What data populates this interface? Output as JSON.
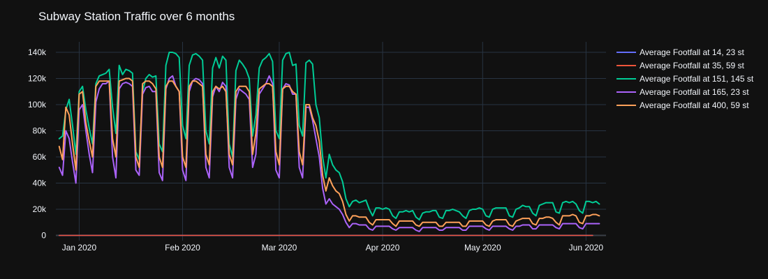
{
  "chart_data": {
    "type": "line",
    "title": "Subway Station Traffic over 6 months",
    "x_start": "2019-12-26",
    "x_end": "2020-06-04",
    "xlim": [
      "2019-12-25",
      "2020-06-07"
    ],
    "ylim": [
      -4000,
      148000
    ],
    "x_ticks": [
      {
        "date": "2020-01-01",
        "label": "Jan 2020"
      },
      {
        "date": "2020-02-01",
        "label": "Feb 2020"
      },
      {
        "date": "2020-03-01",
        "label": "Mar 2020"
      },
      {
        "date": "2020-04-01",
        "label": "Apr 2020"
      },
      {
        "date": "2020-05-01",
        "label": "May 2020"
      },
      {
        "date": "2020-06-01",
        "label": "Jun 2020"
      }
    ],
    "y_ticks": [
      {
        "value": 0,
        "label": "0"
      },
      {
        "value": 20000,
        "label": "20k"
      },
      {
        "value": 40000,
        "label": "40k"
      },
      {
        "value": 60000,
        "label": "60k"
      },
      {
        "value": 80000,
        "label": "80k"
      },
      {
        "value": 100000,
        "label": "100k"
      },
      {
        "value": 120000,
        "label": "120k"
      },
      {
        "value": 140000,
        "label": "140k"
      }
    ],
    "grid": true,
    "legend_position": "right",
    "series": [
      {
        "name": "Average Footfall at 14, 23 st",
        "color": "#636efa",
        "values": [
          0,
          0,
          0,
          0,
          0,
          0,
          0,
          0,
          0,
          0,
          0,
          0,
          0,
          0,
          0,
          0,
          0,
          0,
          0,
          0,
          0,
          0,
          0,
          0,
          0,
          0,
          0,
          0,
          0,
          0,
          0,
          0,
          0,
          0,
          0,
          0,
          0,
          0,
          0,
          0,
          0,
          0,
          0,
          0,
          0,
          0,
          0,
          0,
          0,
          0,
          0,
          0,
          0,
          0,
          0,
          0,
          0,
          0,
          0,
          0,
          0,
          0,
          0,
          0,
          0,
          0,
          0,
          0,
          0,
          0,
          0,
          0,
          0,
          0,
          0,
          0,
          0,
          0,
          0,
          0,
          0,
          0,
          0,
          0,
          0,
          0,
          0,
          0,
          0,
          0,
          0,
          0,
          0,
          0,
          0,
          0,
          0,
          0,
          0,
          0,
          0,
          0,
          0,
          0,
          0,
          0,
          0,
          0,
          0,
          0,
          0,
          0,
          0,
          0,
          0,
          0,
          0,
          0,
          0,
          0,
          0,
          0,
          0,
          0,
          0,
          0,
          0,
          0,
          0,
          0,
          0,
          0,
          0,
          0,
          0,
          0,
          0,
          0,
          0,
          0,
          0,
          0,
          0,
          0,
          0,
          0,
          0,
          0,
          0,
          0,
          0,
          0,
          0,
          0,
          0,
          0,
          0,
          0,
          0,
          0,
          0
        ]
      },
      {
        "name": "Average Footfall at 35, 59 st",
        "color": "#EF553B",
        "values": [
          0,
          0,
          0,
          0,
          0,
          0,
          0,
          0,
          0,
          0,
          0,
          0,
          0,
          0,
          0,
          0,
          0,
          0,
          0,
          0,
          0,
          0,
          0,
          0,
          0,
          0,
          0,
          0,
          0,
          0,
          0,
          0,
          0,
          0,
          0,
          0,
          0,
          0,
          0,
          0,
          0,
          0,
          0,
          0,
          0,
          0,
          0,
          0,
          0,
          0,
          0,
          0,
          0,
          0,
          0,
          0,
          0,
          0,
          0,
          0,
          0,
          0,
          0,
          0,
          0,
          0,
          0,
          0,
          0,
          0,
          0,
          0,
          0,
          0,
          0,
          0,
          0,
          0,
          0,
          0,
          0,
          0,
          0,
          0,
          0,
          0,
          0,
          0,
          0,
          0,
          0,
          0,
          0,
          0,
          0,
          0,
          0,
          0,
          0,
          0,
          0,
          0,
          0,
          0,
          0,
          0,
          0,
          0,
          0,
          0,
          0,
          0,
          0,
          0,
          0,
          0,
          0,
          0,
          0,
          0,
          0,
          0,
          0,
          0,
          0,
          0,
          0,
          0,
          0,
          0,
          0,
          0,
          0,
          0,
          0,
          0,
          0,
          0,
          0,
          0,
          0,
          0,
          0,
          0,
          0,
          0,
          0,
          0,
          0,
          0,
          0,
          0,
          0,
          0,
          0,
          0,
          0,
          0,
          0,
          0,
          0
        ]
      },
      {
        "name": "Average Footfall at 151, 145 st",
        "color": "#00cc96",
        "values": [
          74000,
          76000,
          96000,
          104000,
          84000,
          62000,
          110000,
          114000,
          96000,
          82000,
          70000,
          116000,
          122000,
          123000,
          124000,
          127000,
          98000,
          78000,
          130000,
          123000,
          127000,
          126000,
          124000,
          64000,
          58000,
          110000,
          120000,
          123000,
          121000,
          122000,
          70000,
          64000,
          130000,
          140000,
          140000,
          139000,
          136000,
          84000,
          74000,
          130000,
          138000,
          139000,
          137000,
          134000,
          80000,
          70000,
          128000,
          136000,
          128000,
          137000,
          134000,
          70000,
          60000,
          126000,
          134000,
          131000,
          127000,
          120000,
          76000,
          92000,
          128000,
          134000,
          136000,
          139000,
          133000,
          80000,
          74000,
          134000,
          139000,
          140000,
          130000,
          131000,
          84000,
          76000,
          132000,
          134000,
          131000,
          100000,
          90000,
          60000,
          44000,
          62000,
          54000,
          50000,
          48000,
          41000,
          28000,
          22000,
          26000,
          27000,
          25000,
          26000,
          27000,
          20000,
          15000,
          21000,
          21000,
          20000,
          21000,
          20000,
          15000,
          13000,
          18000,
          18000,
          19000,
          18000,
          19000,
          14000,
          12000,
          17000,
          18000,
          18000,
          19000,
          19000,
          14000,
          13000,
          19000,
          19000,
          20000,
          19000,
          18000,
          15000,
          13000,
          19000,
          20000,
          20000,
          21000,
          20000,
          15000,
          14000,
          20000,
          21000,
          21000,
          21000,
          21000,
          15000,
          14000,
          20000,
          21000,
          23000,
          22000,
          22000,
          17000,
          15000,
          23000,
          24000,
          25000,
          25000,
          25000,
          18000,
          17000,
          25000,
          26000,
          25000,
          26000,
          24000,
          19000,
          17000,
          26000,
          26000,
          25000,
          26000,
          24000
        ]
      },
      {
        "name": "Average Footfall at 165, 23 st",
        "color": "#ab63fa",
        "values": [
          52000,
          46000,
          80000,
          74000,
          56000,
          40000,
          96000,
          100000,
          80000,
          62000,
          48000,
          102000,
          112000,
          116000,
          116000,
          118000,
          60000,
          44000,
          112000,
          116000,
          117000,
          116000,
          114000,
          50000,
          46000,
          108000,
          113000,
          114000,
          110000,
          110000,
          48000,
          42000,
          112000,
          120000,
          122000,
          114000,
          110000,
          50000,
          42000,
          110000,
          118000,
          120000,
          119000,
          116000,
          52000,
          44000,
          106000,
          114000,
          110000,
          117000,
          114000,
          52000,
          44000,
          104000,
          112000,
          110000,
          108000,
          104000,
          52000,
          62000,
          108000,
          112000,
          116000,
          122000,
          116000,
          50000,
          44000,
          112000,
          116000,
          115000,
          108000,
          108000,
          52000,
          44000,
          98000,
          98000,
          88000,
          74000,
          60000,
          36000,
          24000,
          28000,
          24000,
          22000,
          20000,
          16000,
          10000,
          6000,
          9000,
          9000,
          8000,
          8000,
          8000,
          5000,
          4000,
          7000,
          7000,
          7000,
          7000,
          7000,
          5000,
          4000,
          6000,
          6000,
          6000,
          6000,
          6000,
          4000,
          3000,
          6000,
          6000,
          6000,
          6000,
          6000,
          4000,
          4000,
          6000,
          6000,
          6000,
          6000,
          6000,
          4000,
          4000,
          7000,
          7000,
          7000,
          7000,
          7000,
          5000,
          4000,
          7000,
          7000,
          7000,
          7000,
          7000,
          5000,
          4000,
          7000,
          7000,
          8000,
          8000,
          8000,
          5000,
          5000,
          8000,
          8000,
          8000,
          8000,
          8000,
          6000,
          5000,
          9000,
          9000,
          9000,
          9000,
          9000,
          6000,
          5000,
          9000,
          9000,
          9000,
          9000,
          9000
        ]
      },
      {
        "name": "Average Footfall at 400, 59 st",
        "color": "#FFA15A",
        "values": [
          68000,
          58000,
          98000,
          92000,
          70000,
          50000,
          108000,
          110000,
          86000,
          72000,
          60000,
          114000,
          118000,
          118000,
          118000,
          118000,
          74000,
          60000,
          118000,
          119000,
          120000,
          120000,
          118000,
          60000,
          52000,
          116000,
          118000,
          118000,
          116000,
          112000,
          60000,
          52000,
          114000,
          118000,
          118000,
          114000,
          110000,
          60000,
          52000,
          114000,
          118000,
          118000,
          116000,
          114000,
          62000,
          54000,
          110000,
          114000,
          112000,
          114000,
          110000,
          62000,
          54000,
          110000,
          114000,
          114000,
          114000,
          110000,
          62000,
          78000,
          112000,
          114000,
          116000,
          116000,
          114000,
          64000,
          54000,
          112000,
          114000,
          114000,
          110000,
          108000,
          64000,
          54000,
          100000,
          100000,
          90000,
          84000,
          72000,
          46000,
          34000,
          44000,
          38000,
          34000,
          32000,
          26000,
          16000,
          11000,
          15000,
          15000,
          14000,
          14000,
          14000,
          10000,
          8000,
          12000,
          12000,
          12000,
          12000,
          12000,
          9000,
          7000,
          11000,
          11000,
          11000,
          11000,
          11000,
          8000,
          7000,
          10000,
          10000,
          10000,
          10000,
          10000,
          7000,
          7000,
          10000,
          10000,
          10000,
          10000,
          10000,
          7000,
          7000,
          11000,
          11000,
          11000,
          11000,
          11000,
          8000,
          7000,
          11000,
          12000,
          12000,
          12000,
          12000,
          8000,
          7000,
          11000,
          12000,
          13000,
          13000,
          13000,
          9000,
          8000,
          13000,
          13000,
          14000,
          14000,
          13000,
          10000,
          8000,
          15000,
          15000,
          15000,
          16000,
          15000,
          10000,
          9000,
          15000,
          15000,
          16000,
          16000,
          15000
        ]
      }
    ]
  }
}
